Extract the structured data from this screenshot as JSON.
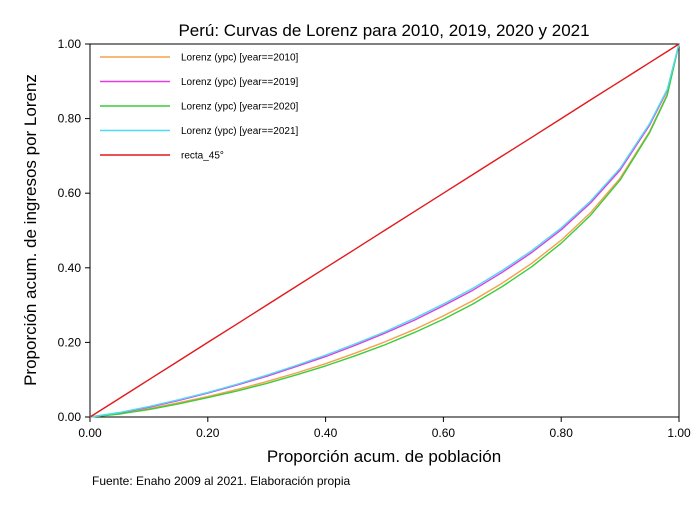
{
  "chart_data": {
    "type": "line",
    "title": "Perú: Curvas de Lorenz para 2010, 2019, 2020 y 2021",
    "xlabel": "Proporción acum. de población",
    "ylabel": "Proporción acum. de ingresos por Lorenz",
    "source": "Fuente: Enaho 2009 al 2021. Elaboración propia",
    "xlim": [
      0,
      1
    ],
    "ylim": [
      0,
      1
    ],
    "xticks": [
      "0.00",
      "0.20",
      "0.40",
      "0.60",
      "0.80",
      "1.00"
    ],
    "yticks": [
      "0.00",
      "0.20",
      "0.40",
      "0.60",
      "0.80",
      "1.00"
    ],
    "grid": false,
    "legend_position": "top-left",
    "x": [
      0,
      0.05,
      0.1,
      0.15,
      0.2,
      0.25,
      0.3,
      0.35,
      0.4,
      0.45,
      0.5,
      0.55,
      0.6,
      0.65,
      0.7,
      0.75,
      0.8,
      0.85,
      0.9,
      0.95,
      0.98,
      1.0
    ],
    "series": [
      {
        "name": "Lorenz (ypc) [year==2010]",
        "color": "#f5a04a",
        "values": [
          0,
          0.009,
          0.022,
          0.038,
          0.055,
          0.074,
          0.095,
          0.118,
          0.143,
          0.171,
          0.201,
          0.234,
          0.271,
          0.312,
          0.359,
          0.412,
          0.474,
          0.548,
          0.64,
          0.765,
          0.865,
          1.0
        ]
      },
      {
        "name": "Lorenz (ypc) [year==2019]",
        "color": "#e23ce2",
        "values": [
          0,
          0.011,
          0.026,
          0.044,
          0.064,
          0.086,
          0.109,
          0.135,
          0.162,
          0.192,
          0.224,
          0.259,
          0.298,
          0.34,
          0.388,
          0.441,
          0.502,
          0.574,
          0.662,
          0.782,
          0.875,
          1.0
        ]
      },
      {
        "name": "Lorenz (ypc) [year==2020]",
        "color": "#3ccc3c",
        "values": [
          0,
          0.008,
          0.02,
          0.035,
          0.052,
          0.07,
          0.09,
          0.113,
          0.137,
          0.164,
          0.193,
          0.226,
          0.262,
          0.303,
          0.35,
          0.403,
          0.466,
          0.541,
          0.635,
          0.762,
          0.862,
          1.0
        ]
      },
      {
        "name": "Lorenz (ypc) [year==2021]",
        "color": "#4ddcef",
        "values": [
          0,
          0.012,
          0.028,
          0.046,
          0.066,
          0.088,
          0.112,
          0.138,
          0.166,
          0.196,
          0.228,
          0.264,
          0.303,
          0.345,
          0.393,
          0.446,
          0.507,
          0.579,
          0.667,
          0.786,
          0.878,
          1.0
        ]
      },
      {
        "name": "recta_45°",
        "color": "#e31a1c",
        "values": [
          0,
          0.05,
          0.1,
          0.15,
          0.2,
          0.25,
          0.3,
          0.35,
          0.4,
          0.45,
          0.5,
          0.55,
          0.6,
          0.65,
          0.7,
          0.75,
          0.8,
          0.85,
          0.9,
          0.95,
          0.98,
          1.0
        ]
      }
    ]
  }
}
